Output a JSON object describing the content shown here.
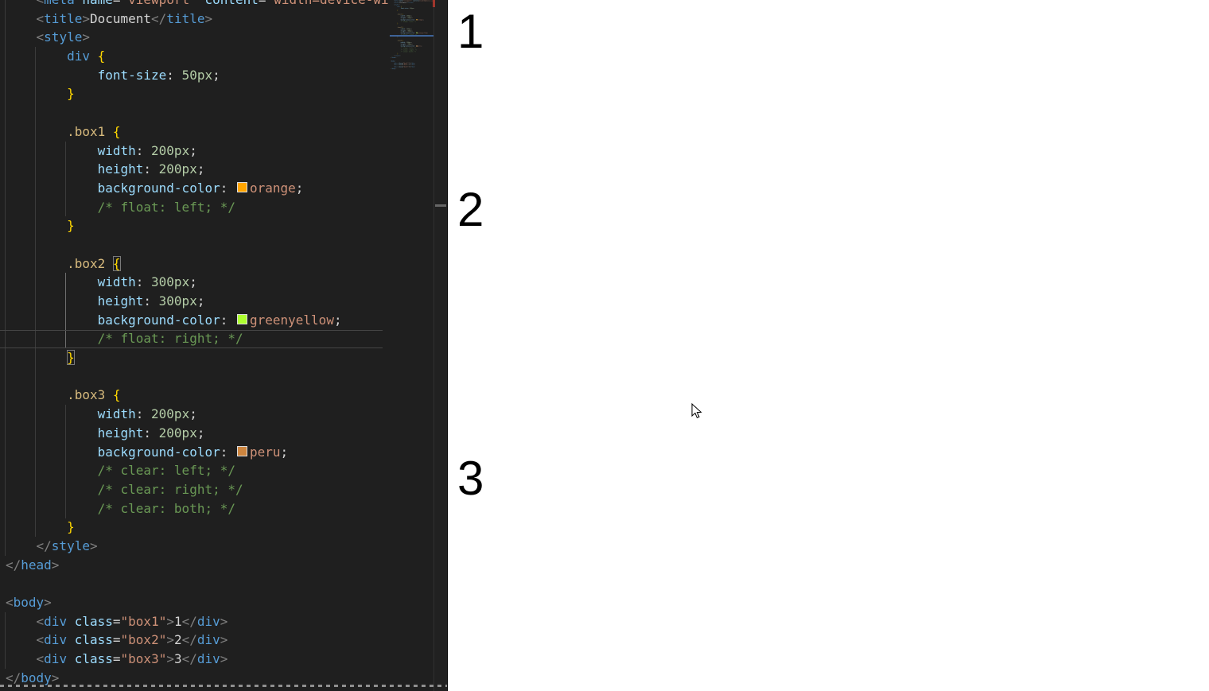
{
  "colors": {
    "editor_bg": "#1f1f1f",
    "preview_bg": "#ffffff",
    "tag": "#569cd6",
    "bkt": "#808080",
    "att": "#9cdcfe",
    "str": "#ce9178",
    "pln": "#d4d4d4",
    "sel": "#d7ba7d",
    "brc": "#ffd700",
    "prp": "#9cdcfe",
    "num": "#b5cea8",
    "kwd": "#ce9178",
    "com": "#6a9955",
    "orange": "#FFA500",
    "greenyellow": "#ADFF2F",
    "peru": "#CD853F"
  },
  "code": {
    "current_line": 19,
    "lines": [
      {
        "spans": [
          {
            "c": "pln",
            "t": "    "
          },
          {
            "c": "bkt",
            "t": "<"
          },
          {
            "c": "tag",
            "t": "meta"
          },
          {
            "c": "pln",
            "t": " "
          },
          {
            "c": "att",
            "t": "name"
          },
          {
            "c": "pln",
            "t": "="
          },
          {
            "c": "str",
            "t": "\"viewport\""
          },
          {
            "c": "pln",
            "t": " "
          },
          {
            "c": "att",
            "t": "content"
          },
          {
            "c": "pln",
            "t": "="
          },
          {
            "c": "str",
            "t": "\"width=device-wi"
          }
        ]
      },
      {
        "spans": [
          {
            "c": "pln",
            "t": "    "
          },
          {
            "c": "bkt",
            "t": "<"
          },
          {
            "c": "tag",
            "t": "title"
          },
          {
            "c": "bkt",
            "t": ">"
          },
          {
            "c": "pln",
            "t": "Document"
          },
          {
            "c": "bkt",
            "t": "</"
          },
          {
            "c": "tag",
            "t": "title"
          },
          {
            "c": "bkt",
            "t": ">"
          }
        ]
      },
      {
        "spans": [
          {
            "c": "pln",
            "t": "    "
          },
          {
            "c": "bkt",
            "t": "<"
          },
          {
            "c": "tag",
            "t": "style"
          },
          {
            "c": "bkt",
            "t": ">"
          }
        ]
      },
      {
        "spans": [
          {
            "c": "pln",
            "t": "        "
          },
          {
            "c": "tag",
            "t": "div"
          },
          {
            "c": "pln",
            "t": " "
          },
          {
            "c": "brc",
            "t": "{"
          }
        ]
      },
      {
        "spans": [
          {
            "c": "pln",
            "t": "            "
          },
          {
            "c": "prp",
            "t": "font-size"
          },
          {
            "c": "pln",
            "t": ": "
          },
          {
            "c": "num",
            "t": "50px"
          },
          {
            "c": "pln",
            "t": ";"
          }
        ]
      },
      {
        "spans": [
          {
            "c": "pln",
            "t": "        "
          },
          {
            "c": "brc",
            "t": "}"
          }
        ]
      },
      {
        "spans": []
      },
      {
        "spans": [
          {
            "c": "pln",
            "t": "        "
          },
          {
            "c": "sel",
            "t": ".box1"
          },
          {
            "c": "pln",
            "t": " "
          },
          {
            "c": "brc",
            "t": "{"
          }
        ]
      },
      {
        "spans": [
          {
            "c": "pln",
            "t": "            "
          },
          {
            "c": "prp",
            "t": "width"
          },
          {
            "c": "pln",
            "t": ": "
          },
          {
            "c": "num",
            "t": "200px"
          },
          {
            "c": "pln",
            "t": ";"
          }
        ]
      },
      {
        "spans": [
          {
            "c": "pln",
            "t": "            "
          },
          {
            "c": "prp",
            "t": "height"
          },
          {
            "c": "pln",
            "t": ": "
          },
          {
            "c": "num",
            "t": "200px"
          },
          {
            "c": "pln",
            "t": ";"
          }
        ]
      },
      {
        "spans": [
          {
            "c": "pln",
            "t": "            "
          },
          {
            "c": "prp",
            "t": "background-color"
          },
          {
            "c": "pln",
            "t": ": "
          },
          {
            "c": "swt",
            "t": "",
            "sw": "orange"
          },
          {
            "c": "kwd",
            "t": "orange"
          },
          {
            "c": "pln",
            "t": ";"
          }
        ]
      },
      {
        "spans": [
          {
            "c": "pln",
            "t": "            "
          },
          {
            "c": "com",
            "t": "/* float: left; */"
          }
        ]
      },
      {
        "spans": [
          {
            "c": "pln",
            "t": "        "
          },
          {
            "c": "brc",
            "t": "}"
          }
        ]
      },
      {
        "spans": []
      },
      {
        "spans": [
          {
            "c": "pln",
            "t": "        "
          },
          {
            "c": "sel",
            "t": ".box2"
          },
          {
            "c": "pln",
            "t": " "
          },
          {
            "c": "brc",
            "t": "{",
            "m": true
          }
        ]
      },
      {
        "spans": [
          {
            "c": "pln",
            "t": "            "
          },
          {
            "c": "prp",
            "t": "width"
          },
          {
            "c": "pln",
            "t": ": "
          },
          {
            "c": "num",
            "t": "300px"
          },
          {
            "c": "pln",
            "t": ";"
          }
        ]
      },
      {
        "spans": [
          {
            "c": "pln",
            "t": "            "
          },
          {
            "c": "prp",
            "t": "height"
          },
          {
            "c": "pln",
            "t": ": "
          },
          {
            "c": "num",
            "t": "300px"
          },
          {
            "c": "pln",
            "t": ";"
          }
        ]
      },
      {
        "spans": [
          {
            "c": "pln",
            "t": "            "
          },
          {
            "c": "prp",
            "t": "background-color"
          },
          {
            "c": "pln",
            "t": ": "
          },
          {
            "c": "swt",
            "t": "",
            "sw": "greenyellow"
          },
          {
            "c": "kwd",
            "t": "greenyellow"
          },
          {
            "c": "pln",
            "t": ";"
          }
        ]
      },
      {
        "spans": [
          {
            "c": "pln",
            "t": "            "
          },
          {
            "c": "com",
            "t": "/* float: right; */"
          }
        ]
      },
      {
        "spans": [
          {
            "c": "pln",
            "t": "        "
          },
          {
            "c": "brc",
            "t": "}",
            "m": true
          }
        ]
      },
      {
        "spans": []
      },
      {
        "spans": [
          {
            "c": "pln",
            "t": "        "
          },
          {
            "c": "sel",
            "t": ".box3"
          },
          {
            "c": "pln",
            "t": " "
          },
          {
            "c": "brc",
            "t": "{"
          }
        ]
      },
      {
        "spans": [
          {
            "c": "pln",
            "t": "            "
          },
          {
            "c": "prp",
            "t": "width"
          },
          {
            "c": "pln",
            "t": ": "
          },
          {
            "c": "num",
            "t": "200px"
          },
          {
            "c": "pln",
            "t": ";"
          }
        ]
      },
      {
        "spans": [
          {
            "c": "pln",
            "t": "            "
          },
          {
            "c": "prp",
            "t": "height"
          },
          {
            "c": "pln",
            "t": ": "
          },
          {
            "c": "num",
            "t": "200px"
          },
          {
            "c": "pln",
            "t": ";"
          }
        ]
      },
      {
        "spans": [
          {
            "c": "pln",
            "t": "            "
          },
          {
            "c": "prp",
            "t": "background-color"
          },
          {
            "c": "pln",
            "t": ": "
          },
          {
            "c": "swt",
            "t": "",
            "sw": "peru"
          },
          {
            "c": "kwd",
            "t": "peru"
          },
          {
            "c": "pln",
            "t": ";"
          }
        ]
      },
      {
        "spans": [
          {
            "c": "pln",
            "t": "            "
          },
          {
            "c": "com",
            "t": "/* clear: left; */"
          }
        ]
      },
      {
        "spans": [
          {
            "c": "pln",
            "t": "            "
          },
          {
            "c": "com",
            "t": "/* clear: right; */"
          }
        ]
      },
      {
        "spans": [
          {
            "c": "pln",
            "t": "            "
          },
          {
            "c": "com",
            "t": "/* clear: both; */"
          }
        ]
      },
      {
        "spans": [
          {
            "c": "pln",
            "t": "        "
          },
          {
            "c": "brc",
            "t": "}"
          }
        ]
      },
      {
        "spans": [
          {
            "c": "pln",
            "t": "    "
          },
          {
            "c": "bkt",
            "t": "</"
          },
          {
            "c": "tag",
            "t": "style"
          },
          {
            "c": "bkt",
            "t": ">"
          }
        ]
      },
      {
        "spans": [
          {
            "c": "bkt",
            "t": "</"
          },
          {
            "c": "tag",
            "t": "head"
          },
          {
            "c": "bkt",
            "t": ">"
          }
        ]
      },
      {
        "spans": []
      },
      {
        "spans": [
          {
            "c": "bkt",
            "t": "<"
          },
          {
            "c": "tag",
            "t": "body"
          },
          {
            "c": "bkt",
            "t": ">"
          }
        ]
      },
      {
        "spans": [
          {
            "c": "pln",
            "t": "    "
          },
          {
            "c": "bkt",
            "t": "<"
          },
          {
            "c": "tag",
            "t": "div"
          },
          {
            "c": "pln",
            "t": " "
          },
          {
            "c": "att",
            "t": "class"
          },
          {
            "c": "pln",
            "t": "="
          },
          {
            "c": "str",
            "t": "\"box1\""
          },
          {
            "c": "bkt",
            "t": ">"
          },
          {
            "c": "pln",
            "t": "1"
          },
          {
            "c": "bkt",
            "t": "</"
          },
          {
            "c": "tag",
            "t": "div"
          },
          {
            "c": "bkt",
            "t": ">"
          }
        ]
      },
      {
        "spans": [
          {
            "c": "pln",
            "t": "    "
          },
          {
            "c": "bkt",
            "t": "<"
          },
          {
            "c": "tag",
            "t": "div"
          },
          {
            "c": "pln",
            "t": " "
          },
          {
            "c": "att",
            "t": "class"
          },
          {
            "c": "pln",
            "t": "="
          },
          {
            "c": "str",
            "t": "\"box2\""
          },
          {
            "c": "bkt",
            "t": ">"
          },
          {
            "c": "pln",
            "t": "2"
          },
          {
            "c": "bkt",
            "t": "</"
          },
          {
            "c": "tag",
            "t": "div"
          },
          {
            "c": "bkt",
            "t": ">"
          }
        ]
      },
      {
        "spans": [
          {
            "c": "pln",
            "t": "    "
          },
          {
            "c": "bkt",
            "t": "<"
          },
          {
            "c": "tag",
            "t": "div"
          },
          {
            "c": "pln",
            "t": " "
          },
          {
            "c": "att",
            "t": "class"
          },
          {
            "c": "pln",
            "t": "="
          },
          {
            "c": "str",
            "t": "\"box3\""
          },
          {
            "c": "bkt",
            "t": ">"
          },
          {
            "c": "pln",
            "t": "3"
          },
          {
            "c": "bkt",
            "t": "</"
          },
          {
            "c": "tag",
            "t": "div"
          },
          {
            "c": "bkt",
            "t": ">"
          }
        ]
      },
      {
        "spans": [
          {
            "c": "bkt",
            "t": "</"
          },
          {
            "c": "tag",
            "t": "body"
          },
          {
            "c": "bkt",
            "t": ">"
          }
        ]
      }
    ]
  },
  "preview": {
    "boxes": [
      {
        "name": "box1",
        "label": "1",
        "color": "orange"
      },
      {
        "name": "box2",
        "label": "2",
        "color": "greenyellow"
      },
      {
        "name": "box3",
        "label": "3",
        "color": "peru"
      }
    ]
  }
}
